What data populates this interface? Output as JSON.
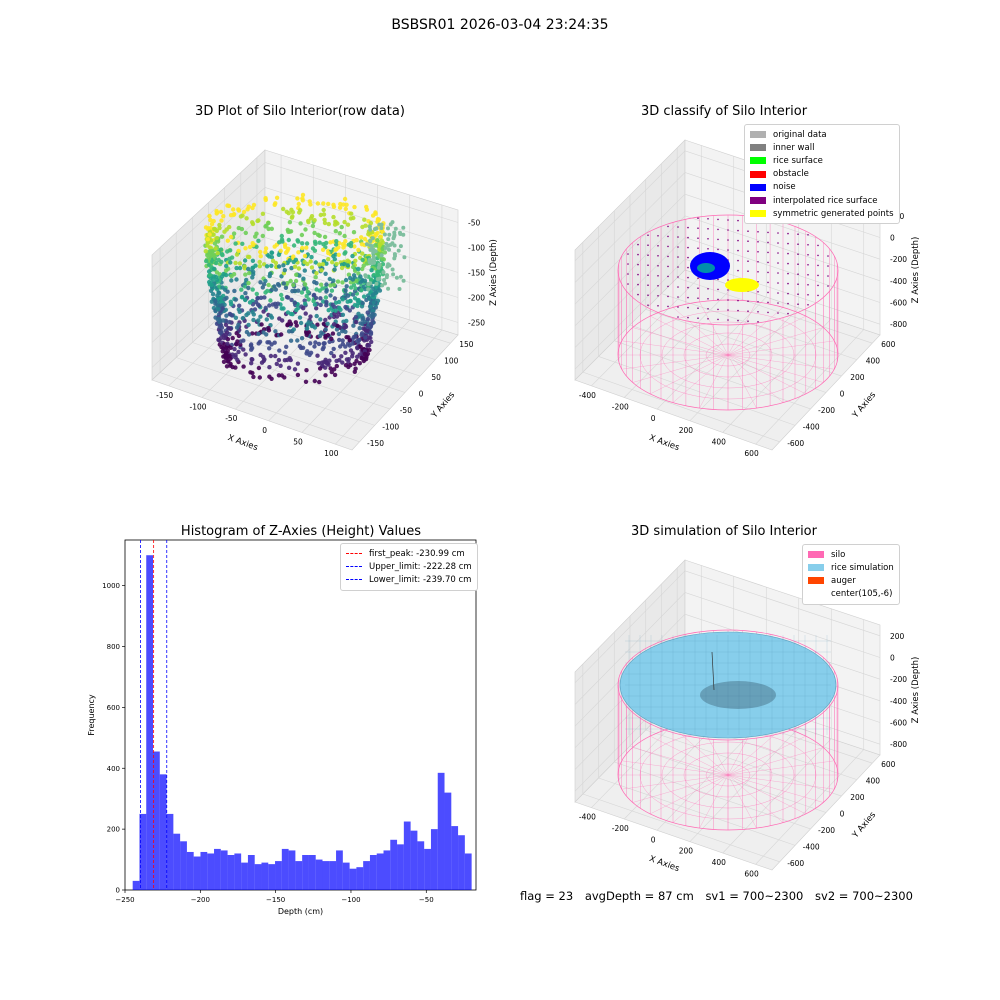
{
  "suptitle": "BSBSR01 2026-03-04 23:24:35",
  "panels": {
    "raw": {
      "title": "3D Plot of Silo Interior(row data)",
      "xlabel": "X Axies",
      "ylabel": "Y Axies",
      "zlabel": "Z Axies (Depth)",
      "xticks": [
        "-150",
        "-100",
        "-50",
        "0",
        "50",
        "100"
      ],
      "yticks": [
        "150",
        "100",
        "50",
        "0",
        "-50",
        "-100",
        "-150"
      ],
      "zticks": [
        "-50",
        "-100",
        "-150",
        "-200",
        "-250"
      ]
    },
    "classify": {
      "title": "3D classify of Silo Interior",
      "xlabel": "X Axies",
      "ylabel": "Y Axies",
      "zlabel": "Z Axies (Depth)",
      "xticks": [
        "-400",
        "-200",
        "0",
        "200",
        "400",
        "600"
      ],
      "yticks": [
        "600",
        "400",
        "200",
        "0",
        "-200",
        "-400",
        "-600"
      ],
      "zticks": [
        "200",
        "0",
        "-200",
        "-400",
        "-600",
        "-800"
      ],
      "legend": [
        {
          "label": "original data",
          "color": "#b0b0b0"
        },
        {
          "label": "inner wall",
          "color": "#808080"
        },
        {
          "label": "rice surface",
          "color": "#00ff00"
        },
        {
          "label": "obstacle",
          "color": "#ff0000"
        },
        {
          "label": "noise",
          "color": "#0000ff"
        },
        {
          "label": "interpolated rice surface",
          "color": "#800080"
        },
        {
          "label": "symmetric generated points",
          "color": "#ffff00"
        }
      ]
    },
    "simulation": {
      "title": "3D simulation of Silo Interior",
      "xlabel": "X Axies",
      "ylabel": "Y Axies",
      "zlabel": "Z Axies (Depth)",
      "xticks": [
        "-400",
        "-200",
        "0",
        "200",
        "400",
        "600"
      ],
      "yticks": [
        "600",
        "400",
        "200",
        "0",
        "-200",
        "-400",
        "-600"
      ],
      "zticks": [
        "200",
        "0",
        "-200",
        "-400",
        "-600",
        "-800"
      ],
      "legend": [
        {
          "label": "silo",
          "color": "#ff69b4"
        },
        {
          "label": "rice simulation",
          "color": "#87ceeb"
        },
        {
          "label": "auger",
          "color": "#ff4500"
        },
        {
          "label": "center(105,-6)",
          "color": ""
        }
      ]
    }
  },
  "chart_data": {
    "type": "bar",
    "title": "Histogram of Z-Axies (Height) Values",
    "xlabel": "Depth (cm)",
    "ylabel": "Frequency",
    "xlim": [
      -250,
      -17
    ],
    "ylim": [
      0,
      1150
    ],
    "xticks": [
      -250,
      -200,
      -150,
      -100,
      -50
    ],
    "yticks": [
      0,
      200,
      400,
      600,
      800,
      1000
    ],
    "bin_start": -244.9,
    "bin_width": 4.5,
    "values": [
      30,
      250,
      1100,
      455,
      380,
      250,
      185,
      160,
      125,
      110,
      125,
      120,
      135,
      130,
      115,
      120,
      90,
      115,
      85,
      90,
      85,
      95,
      135,
      130,
      95,
      115,
      115,
      100,
      95,
      95,
      130,
      90,
      70,
      75,
      95,
      115,
      120,
      130,
      165,
      150,
      225,
      195,
      160,
      135,
      200,
      385,
      320,
      210,
      180,
      120
    ],
    "bar_color": "#0000ff",
    "vlines": [
      {
        "name": "first_peak: -230.99 cm",
        "x": -230.99,
        "color": "#ff0000"
      },
      {
        "name": "Upper_limit: -222.28 cm",
        "x": -222.28,
        "color": "#0000ff"
      },
      {
        "name": "Lower_limit: -239.70 cm",
        "x": -239.7,
        "color": "#0000ff"
      }
    ]
  },
  "status": {
    "flag": "flag = 23",
    "avg_depth": "avgDepth = 87 cm",
    "sv1": "sv1 = 700~2300",
    "sv2": "sv2 = 700~2300"
  }
}
